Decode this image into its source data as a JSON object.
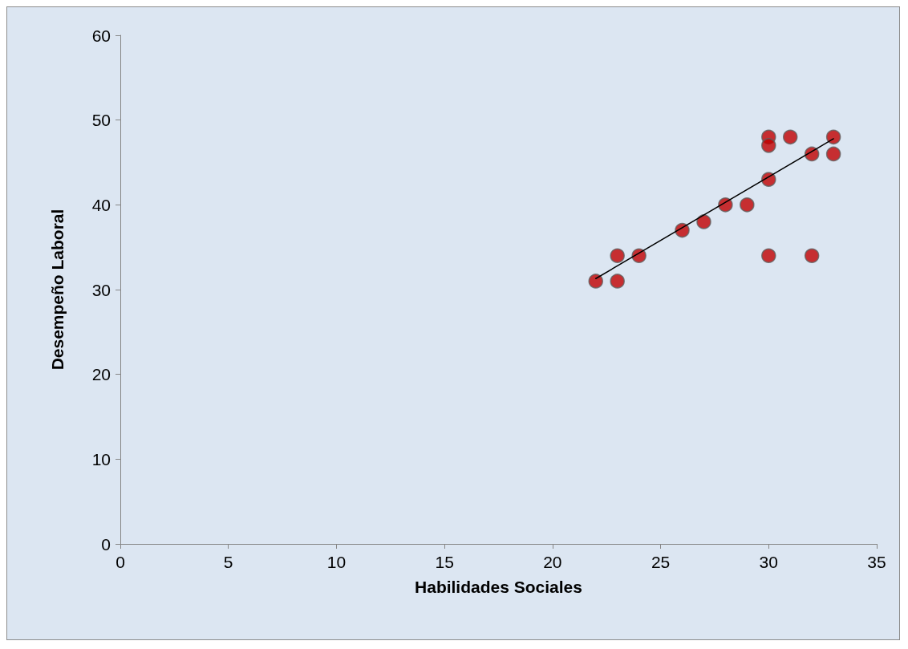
{
  "chart_data": {
    "type": "scatter",
    "xlabel": "Habilidades Sociales",
    "ylabel": "Desempeño Laboral",
    "xlim": [
      0,
      35
    ],
    "xticks": [
      0,
      5,
      10,
      15,
      20,
      25,
      30,
      35
    ],
    "ylim": [
      0,
      60
    ],
    "yticks": [
      0,
      10,
      20,
      30,
      40,
      50,
      60
    ],
    "grid": false,
    "marker": "circle",
    "series": [
      {
        "color": "#c00000",
        "x": [
          22,
          23,
          23,
          24,
          26,
          27,
          28,
          29,
          30,
          30,
          30,
          30,
          31,
          32,
          32,
          33,
          33
        ],
        "values": [
          31,
          34,
          31,
          34,
          37,
          38,
          40,
          40,
          48,
          47,
          43,
          34,
          48,
          46,
          34,
          48,
          46
        ]
      },
      {
        "type": "line",
        "color": "#000000",
        "marker": "none",
        "line_style": "solid",
        "x": [
          22,
          33
        ],
        "values": [
          31.3,
          47.8
        ]
      }
    ]
  }
}
